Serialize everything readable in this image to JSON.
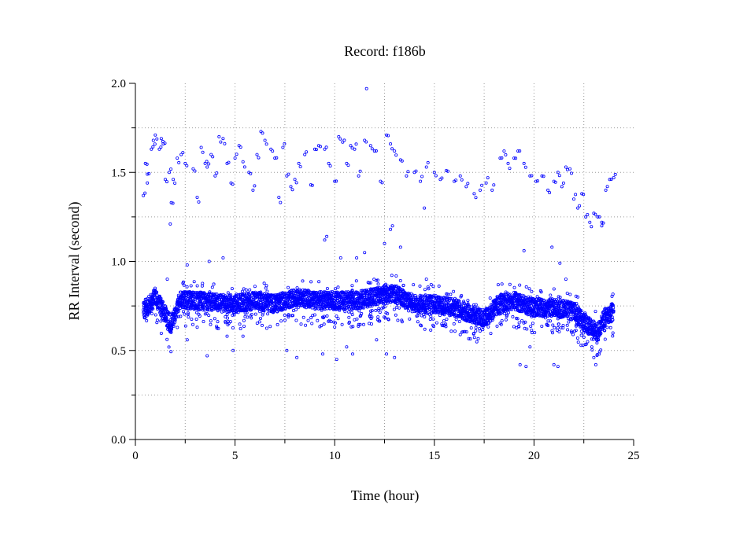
{
  "chart_data": {
    "type": "scatter",
    "title": "Record:  f186b",
    "xlabel": "Time (hour)",
    "ylabel": "RR Interval (second)",
    "xlim": [
      0,
      25
    ],
    "ylim": [
      0,
      2.0
    ],
    "x_ticks": [
      0,
      5,
      10,
      15,
      20,
      25
    ],
    "x_tick_labels": [
      "0",
      "5",
      "10",
      "15",
      "20",
      "25"
    ],
    "y_ticks": [
      0.0,
      0.5,
      1.0,
      1.5,
      2.0
    ],
    "y_tick_labels": [
      "0.0",
      "0.5",
      "1.0",
      "1.5",
      "2.0"
    ],
    "grid": true,
    "marker_color": "#0000ff",
    "series": [
      {
        "name": "",
        "baseline": [
          [
            0.4,
            0.72
          ],
          [
            1.0,
            0.8
          ],
          [
            1.5,
            0.7
          ],
          [
            1.8,
            0.64
          ],
          [
            2.2,
            0.78
          ],
          [
            3.0,
            0.78
          ],
          [
            4.0,
            0.77
          ],
          [
            5.0,
            0.76
          ],
          [
            6.0,
            0.78
          ],
          [
            7.0,
            0.76
          ],
          [
            8.0,
            0.8
          ],
          [
            9.0,
            0.78
          ],
          [
            10.0,
            0.78
          ],
          [
            11.0,
            0.78
          ],
          [
            12.0,
            0.8
          ],
          [
            13.0,
            0.82
          ],
          [
            14.0,
            0.76
          ],
          [
            15.0,
            0.76
          ],
          [
            16.0,
            0.74
          ],
          [
            17.0,
            0.7
          ],
          [
            17.6,
            0.68
          ],
          [
            18.2,
            0.76
          ],
          [
            19.0,
            0.78
          ],
          [
            20.0,
            0.74
          ],
          [
            21.0,
            0.74
          ],
          [
            22.0,
            0.72
          ],
          [
            22.5,
            0.66
          ],
          [
            23.2,
            0.6
          ],
          [
            23.5,
            0.68
          ],
          [
            24.0,
            0.72
          ]
        ],
        "upper_cluster": [
          [
            0.4,
            1.37
          ],
          [
            0.5,
            1.55
          ],
          [
            0.6,
            1.49
          ],
          [
            0.8,
            1.63
          ],
          [
            0.9,
            1.68
          ],
          [
            1.0,
            1.71
          ],
          [
            1.2,
            1.63
          ],
          [
            1.3,
            1.69
          ],
          [
            1.4,
            1.66
          ],
          [
            1.5,
            1.46
          ],
          [
            1.7,
            1.5
          ],
          [
            1.8,
            1.33
          ],
          [
            1.9,
            1.46
          ],
          [
            2.1,
            1.58
          ],
          [
            2.3,
            1.6
          ],
          [
            2.5,
            1.55
          ],
          [
            2.9,
            1.52
          ],
          [
            3.1,
            1.36
          ],
          [
            3.3,
            1.64
          ],
          [
            3.5,
            1.55
          ],
          [
            3.6,
            1.53
          ],
          [
            3.8,
            1.6
          ],
          [
            4.0,
            1.48
          ],
          [
            4.2,
            1.7
          ],
          [
            4.4,
            1.69
          ],
          [
            4.6,
            1.55
          ],
          [
            4.8,
            1.44
          ],
          [
            5.0,
            1.58
          ],
          [
            5.2,
            1.65
          ],
          [
            5.4,
            1.56
          ],
          [
            5.7,
            1.5
          ],
          [
            5.9,
            1.4
          ],
          [
            6.1,
            1.6
          ],
          [
            6.3,
            1.73
          ],
          [
            6.5,
            1.68
          ],
          [
            6.8,
            1.63
          ],
          [
            7.0,
            1.58
          ],
          [
            7.2,
            1.36
          ],
          [
            7.4,
            1.64
          ],
          [
            7.6,
            1.48
          ],
          [
            7.8,
            1.42
          ],
          [
            8.0,
            1.46
          ],
          [
            8.2,
            1.55
          ],
          [
            8.5,
            1.6
          ],
          [
            8.8,
            1.43
          ],
          [
            9.0,
            1.63
          ],
          [
            9.2,
            1.65
          ],
          [
            9.5,
            1.63
          ],
          [
            9.7,
            1.55
          ],
          [
            10.0,
            1.45
          ],
          [
            10.2,
            1.7
          ],
          [
            10.4,
            1.67
          ],
          [
            10.6,
            1.55
          ],
          [
            10.8,
            1.65
          ],
          [
            11.0,
            1.63
          ],
          [
            11.2,
            1.48
          ],
          [
            11.5,
            1.68
          ],
          [
            11.8,
            1.65
          ],
          [
            12.0,
            1.62
          ],
          [
            12.3,
            1.45
          ],
          [
            12.6,
            1.71
          ],
          [
            12.8,
            1.66
          ],
          [
            13.0,
            1.62
          ],
          [
            13.3,
            1.57
          ],
          [
            13.6,
            1.48
          ],
          [
            14.0,
            1.5
          ],
          [
            14.3,
            1.45
          ],
          [
            14.6,
            1.53
          ],
          [
            15.0,
            1.5
          ],
          [
            15.3,
            1.46
          ],
          [
            15.6,
            1.51
          ],
          [
            16.0,
            1.45
          ],
          [
            16.3,
            1.48
          ],
          [
            16.6,
            1.42
          ],
          [
            17.0,
            1.38
          ],
          [
            17.3,
            1.4
          ],
          [
            17.6,
            1.44
          ],
          [
            17.9,
            1.4
          ],
          [
            18.3,
            1.58
          ],
          [
            18.5,
            1.62
          ],
          [
            18.7,
            1.55
          ],
          [
            19.0,
            1.58
          ],
          [
            19.2,
            1.62
          ],
          [
            19.5,
            1.55
          ],
          [
            19.8,
            1.48
          ],
          [
            20.1,
            1.45
          ],
          [
            20.4,
            1.48
          ],
          [
            20.7,
            1.4
          ],
          [
            21.0,
            1.45
          ],
          [
            21.2,
            1.5
          ],
          [
            21.4,
            1.42
          ],
          [
            21.6,
            1.53
          ],
          [
            21.8,
            1.52
          ],
          [
            22.0,
            1.35
          ],
          [
            22.2,
            1.3
          ],
          [
            22.4,
            1.38
          ],
          [
            22.6,
            1.25
          ],
          [
            22.8,
            1.22
          ],
          [
            23.0,
            1.27
          ],
          [
            23.2,
            1.25
          ],
          [
            23.4,
            1.2
          ],
          [
            23.6,
            1.4
          ],
          [
            23.8,
            1.46
          ],
          [
            24.0,
            1.47
          ]
        ],
        "outliers": [
          [
            0.6,
            1.44
          ],
          [
            1.6,
            0.9
          ],
          [
            1.75,
            1.21
          ],
          [
            2.6,
            0.98
          ],
          [
            2.6,
            0.56
          ],
          [
            3.1,
            0.63
          ],
          [
            3.6,
            0.47
          ],
          [
            3.7,
            1.0
          ],
          [
            4.4,
            1.02
          ],
          [
            4.6,
            0.58
          ],
          [
            4.9,
            0.5
          ],
          [
            5.4,
            0.58
          ],
          [
            6.0,
            0.86
          ],
          [
            7.6,
            0.5
          ],
          [
            8.1,
            0.46
          ],
          [
            9.0,
            0.7
          ],
          [
            9.4,
            0.48
          ],
          [
            9.5,
            1.12
          ],
          [
            9.6,
            1.14
          ],
          [
            10.1,
            0.45
          ],
          [
            10.3,
            1.02
          ],
          [
            10.6,
            0.52
          ],
          [
            10.9,
            0.48
          ],
          [
            11.1,
            1.02
          ],
          [
            11.5,
            1.05
          ],
          [
            11.6,
            1.97
          ],
          [
            11.8,
            0.88
          ],
          [
            12.1,
            0.56
          ],
          [
            12.5,
            1.1
          ],
          [
            12.6,
            0.48
          ],
          [
            12.8,
            1.18
          ],
          [
            12.9,
            1.2
          ],
          [
            13.0,
            0.46
          ],
          [
            13.3,
            1.08
          ],
          [
            14.5,
            1.3
          ],
          [
            14.6,
            0.9
          ],
          [
            19.3,
            0.42
          ],
          [
            19.5,
            1.06
          ],
          [
            19.6,
            0.41
          ],
          [
            19.8,
            0.52
          ],
          [
            20.9,
            1.08
          ],
          [
            21.0,
            0.42
          ],
          [
            21.2,
            0.41
          ],
          [
            21.3,
            0.99
          ],
          [
            21.6,
            0.9
          ],
          [
            22.2,
            0.8
          ],
          [
            22.9,
            0.52
          ],
          [
            23.0,
            0.46
          ],
          [
            23.1,
            0.42
          ],
          [
            23.4,
            1.22
          ]
        ]
      }
    ]
  }
}
